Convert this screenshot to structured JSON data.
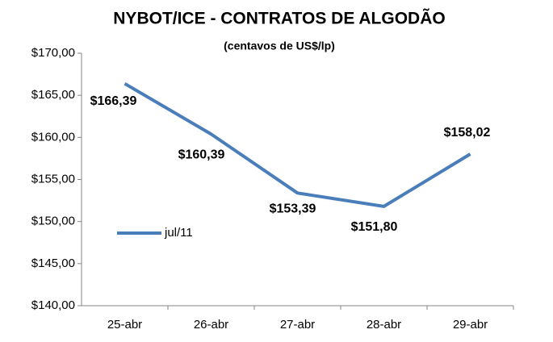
{
  "chart_data": {
    "type": "line",
    "title": "NYBOT/ICE - CONTRATOS DE ALGODÃO",
    "subtitle": "(centavos de US$/lp)",
    "categories": [
      "25-abr",
      "26-abr",
      "27-abr",
      "28-abr",
      "29-abr"
    ],
    "series": [
      {
        "name": "jul/11",
        "color": "#4a7ebb",
        "values": [
          166.39,
          160.39,
          153.39,
          151.8,
          158.02
        ],
        "value_labels": [
          "$166,39",
          "$160,39",
          "$153,39",
          "$151,80",
          "$158,02"
        ]
      }
    ],
    "ylim": [
      140,
      170
    ],
    "yticks": [
      {
        "value": 140,
        "label": "$140,00"
      },
      {
        "value": 145,
        "label": "$145,00"
      },
      {
        "value": 150,
        "label": "$150,00"
      },
      {
        "value": 155,
        "label": "$155,00"
      },
      {
        "value": 160,
        "label": "$160,00"
      },
      {
        "value": 165,
        "label": "$165,00"
      },
      {
        "value": 170,
        "label": "$170,00"
      }
    ],
    "grid": false,
    "legend": "left"
  }
}
